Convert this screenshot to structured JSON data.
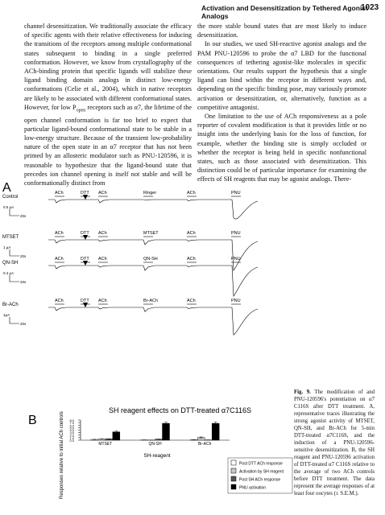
{
  "header": {
    "running_title": "Activation and Desensitization by Tethered Agonist Analogs",
    "page_number": "1023"
  },
  "left_column": {
    "text_before": "channel desensitization. We traditionally associate the efficacy of specific agents with their relative effectiveness for inducing the transitions of the receptors among multiple conformational states subsequent to binding in a single preferred conformation. However, we know from crystallography of the ACh-binding protein that specific ligands will stabilize these ligand binding domain analogs in distinct low-energy conformations (Celie et al., 2004), which in native receptors are likely to be associated with different conformational states. However, for low P",
    "subscript": "open",
    "text_after": " receptors such as α7, the lifetime of the open channel conformation is far too brief to expect that particular ligand-bound conformational state to be stable in a low-energy structure. Because of the transient low-probability nature of the open state in an α7 receptor that has not been primed by an allosteric modulator such as PNU-120596, it is reasonable to hypothesize that the ligand-bound state that precedes ion channel opening is itself not stable and will be conformationally distinct from"
  },
  "right_column": {
    "paragraphs": [
      "the more stable bound states that are most likely to induce desensitization.",
      "In our studies, we used SH-reactive agonist analogs and the PAM PNU-120596 to probe the α7 LBD for the functional consequences of tethering agonist-like molecules in specific orientations. Our results support the hypothesis that a single ligand can bind within the receptor in different ways and, depending on the specific binding pose, may variously promote activation or desensitization, or, alternatively, function as a competitive antagonist.",
      "One limitation to the use of ACh responsiveness as a pole reporter of covalent modification is that it provides little or no insight into the underlying basis for the loss of function, for example, whether the binding site is simply occluded or whether the receptor is being held in specific nonfunctional states, such as those associated with desensitization. This distinction could be of particular importance for examining the effects of SH reagents that may be agonist analogs. There-"
    ]
  },
  "figure": {
    "panel_a": {
      "label": "A",
      "rows": [
        {
          "label": "Control",
          "events": [
            "ACh",
            "DTT",
            "ACh",
            "Ringer",
            "ACh",
            "PNU"
          ],
          "scale_current": "0.5 µA",
          "scale_time": "20s"
        },
        {
          "label": "MTSET",
          "events": [
            "ACh",
            "DTT",
            "ACh",
            "MTSET",
            "ACh",
            "PNU"
          ],
          "scale_current": "1 µA",
          "scale_time": "20s"
        },
        {
          "label": "QN-SH",
          "events": [
            "ACh",
            "DTT",
            "ACh",
            "QN-SH",
            "ACh",
            "PNU"
          ],
          "scale_current": "0.4 µA",
          "scale_time": "20s"
        },
        {
          "label": "Br-ACh",
          "events": [
            "ACh",
            "DTT",
            "ACh",
            "Br-ACh",
            "ACh",
            "PNU"
          ],
          "scale_current": "1µA",
          "scale_time": "20s"
        }
      ]
    },
    "panel_b": {
      "label": "B"
    },
    "caption": {
      "label": "Fig. 9.",
      "text": " The modification of and PNU-120596's potentiation on α7 C116S after DTT treatment. A, representative traces illustrating the strong agonist activity of MTSET, QN-SH, and Br-ACh for 5-min DTT-treated α7C116S, and the induction of a PNU-120596-sensitive desensitization. B, the SH reagent and PNU-120596 activation of DTT-treated α7 C116S relative to the average of two ACh controls before DTT treatment. The data represent the average responses of at least four oocytes (± S.E.M.)."
    }
  },
  "chart_data": {
    "type": "bar",
    "title": "SH reagent effects on DTT-treated α7C116S",
    "y_label": "Responses relative to initial ACh controls",
    "x_label": "SH-reagent",
    "categories": [
      "MTSET",
      "QN-SH",
      "Br-ACh"
    ],
    "series": [
      {
        "name": "Post DTT ACh response",
        "color": "#ffffff",
        "values": [
          0.3,
          0.1,
          0.15
        ],
        "errors": [
          0.05,
          0.03,
          0.03
        ]
      },
      {
        "name": "Activation by SH reagent",
        "color": "#c8c8c8",
        "values": [
          0.45,
          0.05,
          1.1
        ],
        "errors": [
          0.05,
          0.02,
          0.2
        ]
      },
      {
        "name": "Post SH ACh response",
        "color": "#555555",
        "values": [
          0.5,
          0.4,
          0.1
        ],
        "errors": [
          0.08,
          0.05,
          0.03
        ]
      },
      {
        "name": "PNU activation",
        "color": "#000000",
        "values": [
          3.3,
          6.7,
          6.7
        ],
        "errors": [
          0.4,
          0.5,
          0.6
        ]
      }
    ],
    "ylim": [
      0,
      8
    ],
    "yticks": [
      {
        "value": 0,
        "label": "0.0"
      },
      {
        "value": 1,
        "label": "1.0"
      },
      {
        "value": 2,
        "label": "2.0"
      },
      {
        "value": 3,
        "label": "3.0"
      },
      {
        "value": 4,
        "label": "4.0"
      },
      {
        "value": 5,
        "label": "5.0"
      },
      {
        "value": 6,
        "label": "6.0"
      },
      {
        "value": 7,
        "label": "7.0"
      },
      {
        "value": 8,
        "label": "8.0"
      }
    ]
  }
}
